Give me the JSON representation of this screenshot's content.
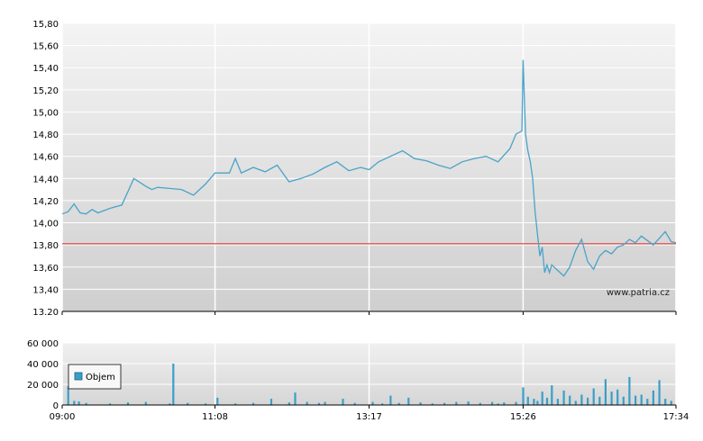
{
  "colors": {
    "price_line": "#4aa3c9",
    "reference_line": "#e02020",
    "volume_bar": "#3a9fc8",
    "plot_bg_top": "#f4f4f4",
    "plot_bg_bottom": "#d0d0d0",
    "grid": "#ffffff",
    "axis": "#000000"
  },
  "chart_data": [
    {
      "type": "line",
      "watermark": "www.patria.cz",
      "ylim": [
        13.2,
        15.8
      ],
      "y_ticks": [
        "15,80",
        "15,60",
        "15,40",
        "15,20",
        "15,00",
        "14,80",
        "14,60",
        "14,40",
        "14,20",
        "14,00",
        "13,80",
        "13,60",
        "13,40",
        "13.20"
      ],
      "x_ticks": [
        "09:00",
        "11:08",
        "13:17",
        "15:26",
        "17:34"
      ],
      "reference_value": 13.81,
      "grid": true,
      "series": [
        {
          "x": [
            "09:00",
            "09:05",
            "09:10",
            "09:15",
            "09:20",
            "09:25",
            "09:30",
            "09:40",
            "09:50",
            "10:00",
            "10:10",
            "10:15",
            "10:20",
            "10:30",
            "10:40",
            "10:50",
            "11:00",
            "11:08",
            "11:20",
            "11:25",
            "11:30",
            "11:40",
            "11:50",
            "12:00",
            "12:10",
            "12:20",
            "12:30",
            "12:40",
            "12:50",
            "13:00",
            "13:10",
            "13:17",
            "13:25",
            "13:35",
            "13:45",
            "13:55",
            "14:05",
            "14:15",
            "14:25",
            "14:35",
            "14:45",
            "14:55",
            "15:05",
            "15:15",
            "15:20",
            "15:25",
            "15:26",
            "15:28",
            "15:30",
            "15:32",
            "15:34",
            "15:36",
            "15:38",
            "15:40",
            "15:42",
            "15:44",
            "15:46",
            "15:48",
            "15:50",
            "15:55",
            "16:00",
            "16:05",
            "16:10",
            "16:15",
            "16:20",
            "16:25",
            "16:30",
            "16:35",
            "16:40",
            "16:45",
            "16:50",
            "16:55",
            "17:00",
            "17:05",
            "17:10",
            "17:15",
            "17:20",
            "17:25",
            "17:30",
            "17:34"
          ],
          "values": [
            14.08,
            14.1,
            14.17,
            14.09,
            14.08,
            14.12,
            14.09,
            14.13,
            14.16,
            14.4,
            14.33,
            14.3,
            14.32,
            14.31,
            14.3,
            14.25,
            14.35,
            14.45,
            14.45,
            14.58,
            14.45,
            14.5,
            14.46,
            14.52,
            14.37,
            14.4,
            14.44,
            14.5,
            14.55,
            14.47,
            14.5,
            14.48,
            14.55,
            14.6,
            14.65,
            14.58,
            14.56,
            14.52,
            14.49,
            14.55,
            14.58,
            14.6,
            14.55,
            14.67,
            14.8,
            14.83,
            15.47,
            14.8,
            14.65,
            14.55,
            14.4,
            14.1,
            13.9,
            13.7,
            13.78,
            13.55,
            13.62,
            13.55,
            13.62,
            13.57,
            13.52,
            13.6,
            13.75,
            13.85,
            13.65,
            13.58,
            13.7,
            13.75,
            13.72,
            13.78,
            13.8,
            13.85,
            13.82,
            13.88,
            13.84,
            13.8,
            13.86,
            13.92,
            13.83,
            13.82
          ]
        }
      ]
    },
    {
      "type": "bar",
      "ylim": [
        0,
        60000
      ],
      "y_ticks": [
        "60 000",
        "40 000",
        "20 000",
        "0"
      ],
      "x_ticks": [
        "09:00",
        "11:08",
        "13:17",
        "15:26",
        "17:34"
      ],
      "legend": "Objem",
      "legend_position": "left",
      "series": [
        {
          "name": "Objem",
          "x": [
            "09:05",
            "09:10",
            "09:14",
            "09:20",
            "09:40",
            "09:55",
            "10:10",
            "10:30",
            "10:33",
            "10:45",
            "11:00",
            "11:10",
            "11:25",
            "11:40",
            "11:55",
            "12:10",
            "12:15",
            "12:25",
            "12:35",
            "12:40",
            "12:55",
            "13:05",
            "13:20",
            "13:28",
            "13:35",
            "13:42",
            "13:50",
            "14:00",
            "14:10",
            "14:20",
            "14:30",
            "14:40",
            "14:50",
            "15:00",
            "15:05",
            "15:10",
            "15:20",
            "15:26",
            "15:30",
            "15:35",
            "15:38",
            "15:42",
            "15:46",
            "15:50",
            "15:55",
            "16:00",
            "16:05",
            "16:10",
            "16:15",
            "16:20",
            "16:25",
            "16:30",
            "16:35",
            "16:40",
            "16:45",
            "16:50",
            "16:55",
            "17:00",
            "17:05",
            "17:10",
            "17:15",
            "17:20",
            "17:25",
            "17:30"
          ],
          "values": [
            18000,
            4000,
            3500,
            2000,
            1500,
            2500,
            3000,
            1500,
            40000,
            2000,
            1500,
            7000,
            1500,
            2000,
            6000,
            2500,
            12000,
            3000,
            2000,
            3000,
            6000,
            2000,
            3000,
            1500,
            9000,
            2000,
            7000,
            2500,
            1500,
            2000,
            3000,
            3500,
            2000,
            3000,
            1500,
            2500,
            3000,
            17000,
            8000,
            6000,
            4000,
            13000,
            7000,
            19000,
            6000,
            14000,
            9000,
            4000,
            10000,
            7000,
            16000,
            8000,
            25000,
            13000,
            15000,
            8000,
            27000,
            9000,
            10000,
            6000,
            14000,
            24000,
            6000,
            4000
          ]
        }
      ]
    }
  ]
}
